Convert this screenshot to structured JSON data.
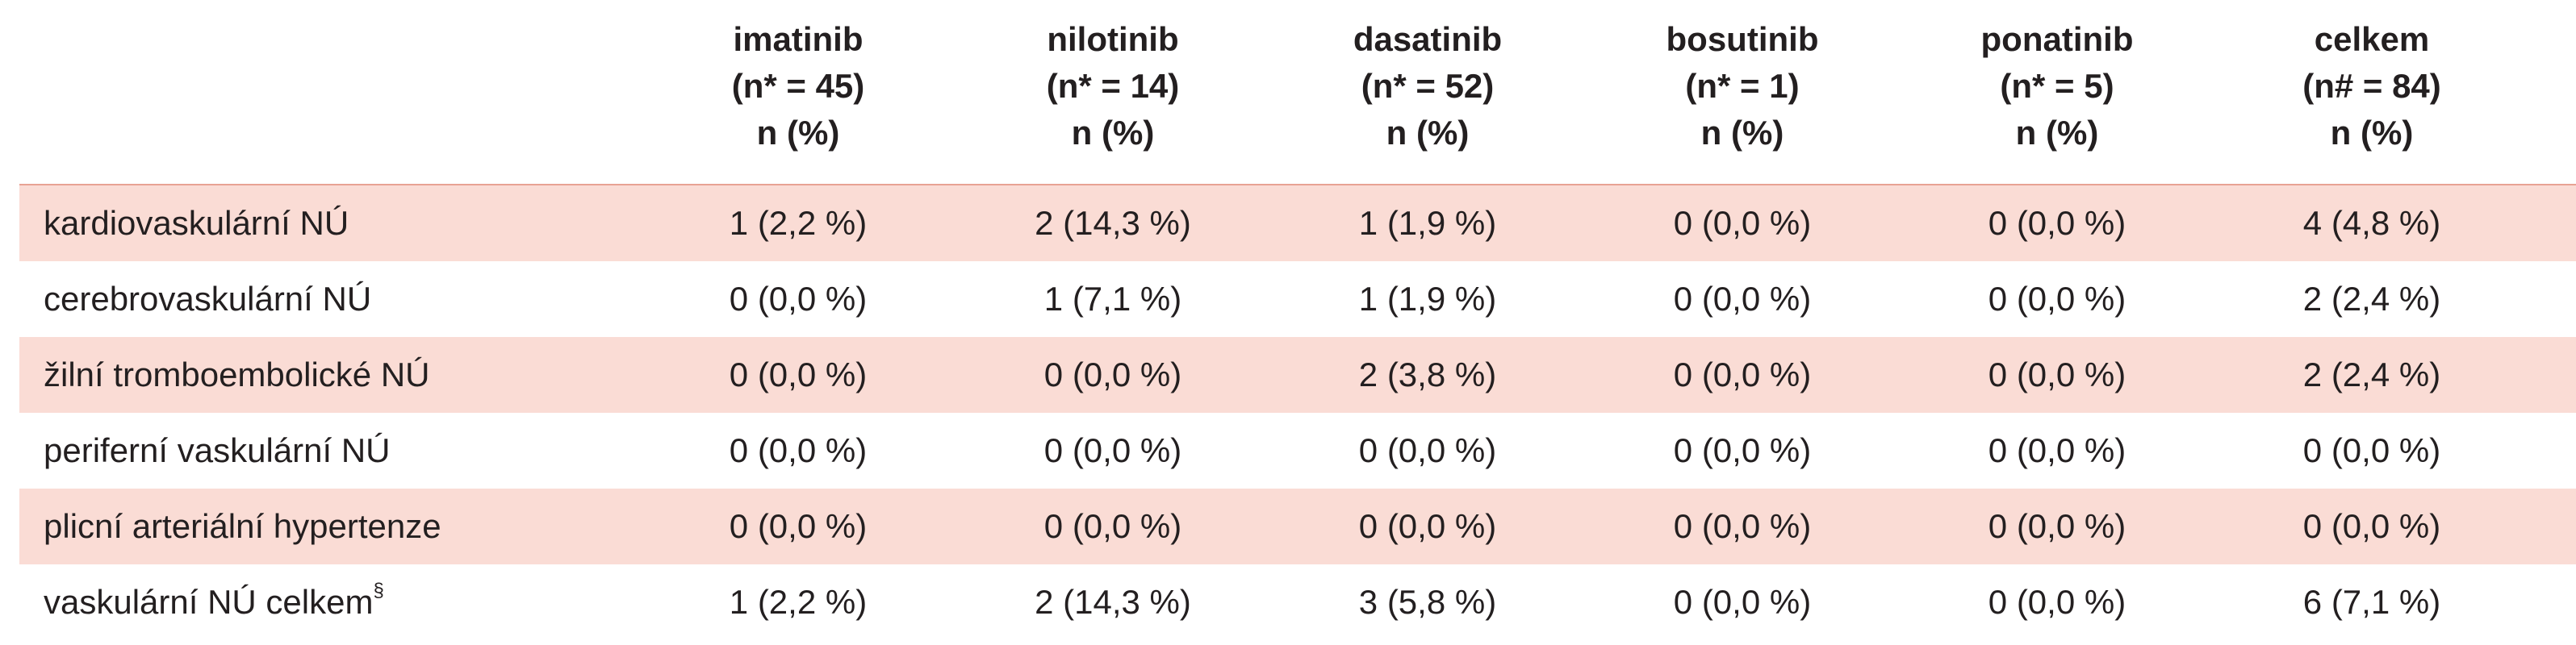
{
  "columns": [
    {
      "drug": "imatinib",
      "n": "(n* = 45)",
      "unit": "n (%)"
    },
    {
      "drug": "nilotinib",
      "n": "(n* = 14)",
      "unit": "n (%)"
    },
    {
      "drug": "dasatinib",
      "n": "(n* = 52)",
      "unit": "n (%)"
    },
    {
      "drug": "bosutinib",
      "n": "(n* = 1)",
      "unit": "n (%)"
    },
    {
      "drug": "ponatinib",
      "n": "(n* = 5)",
      "unit": "n (%)"
    },
    {
      "drug": "celkem",
      "n": "(n# = 84)",
      "unit": "n (%)"
    }
  ],
  "rows": [
    {
      "label": "kardiovaskulární NÚ",
      "sup": "",
      "values": [
        "1 (2,2 %)",
        "2 (14,3 %)",
        "1 (1,9 %)",
        "0 (0,0 %)",
        "0 (0,0 %)",
        "4 (4,8 %)"
      ]
    },
    {
      "label": "cerebrovaskulární NÚ",
      "sup": "",
      "values": [
        "0 (0,0 %)",
        "1 (7,1 %)",
        "1 (1,9 %)",
        "0 (0,0 %)",
        "0 (0,0 %)",
        "2 (2,4 %)"
      ]
    },
    {
      "label": "žilní tromboembolické NÚ",
      "sup": "",
      "values": [
        "0 (0,0 %)",
        "0 (0,0 %)",
        "2 (3,8 %)",
        "0 (0,0 %)",
        "0 (0,0 %)",
        "2 (2,4 %)"
      ]
    },
    {
      "label": "periferní vaskulární NÚ",
      "sup": "",
      "values": [
        "0 (0,0 %)",
        "0 (0,0 %)",
        "0 (0,0 %)",
        "0 (0,0 %)",
        "0 (0,0 %)",
        "0 (0,0 %)"
      ]
    },
    {
      "label": "plicní arteriální hypertenze",
      "sup": "",
      "values": [
        "0 (0,0 %)",
        "0 (0,0 %)",
        "0 (0,0 %)",
        "0 (0,0 %)",
        "0 (0,0 %)",
        "0 (0,0 %)"
      ]
    },
    {
      "label": "vaskulární NÚ celkem",
      "sup": "§",
      "values": [
        "1 (2,2 %)",
        "2 (14,3 %)",
        "3 (5,8 %)",
        "0 (0,0 %)",
        "0 (0,0 %)",
        "6 (7,1 %)"
      ]
    }
  ]
}
